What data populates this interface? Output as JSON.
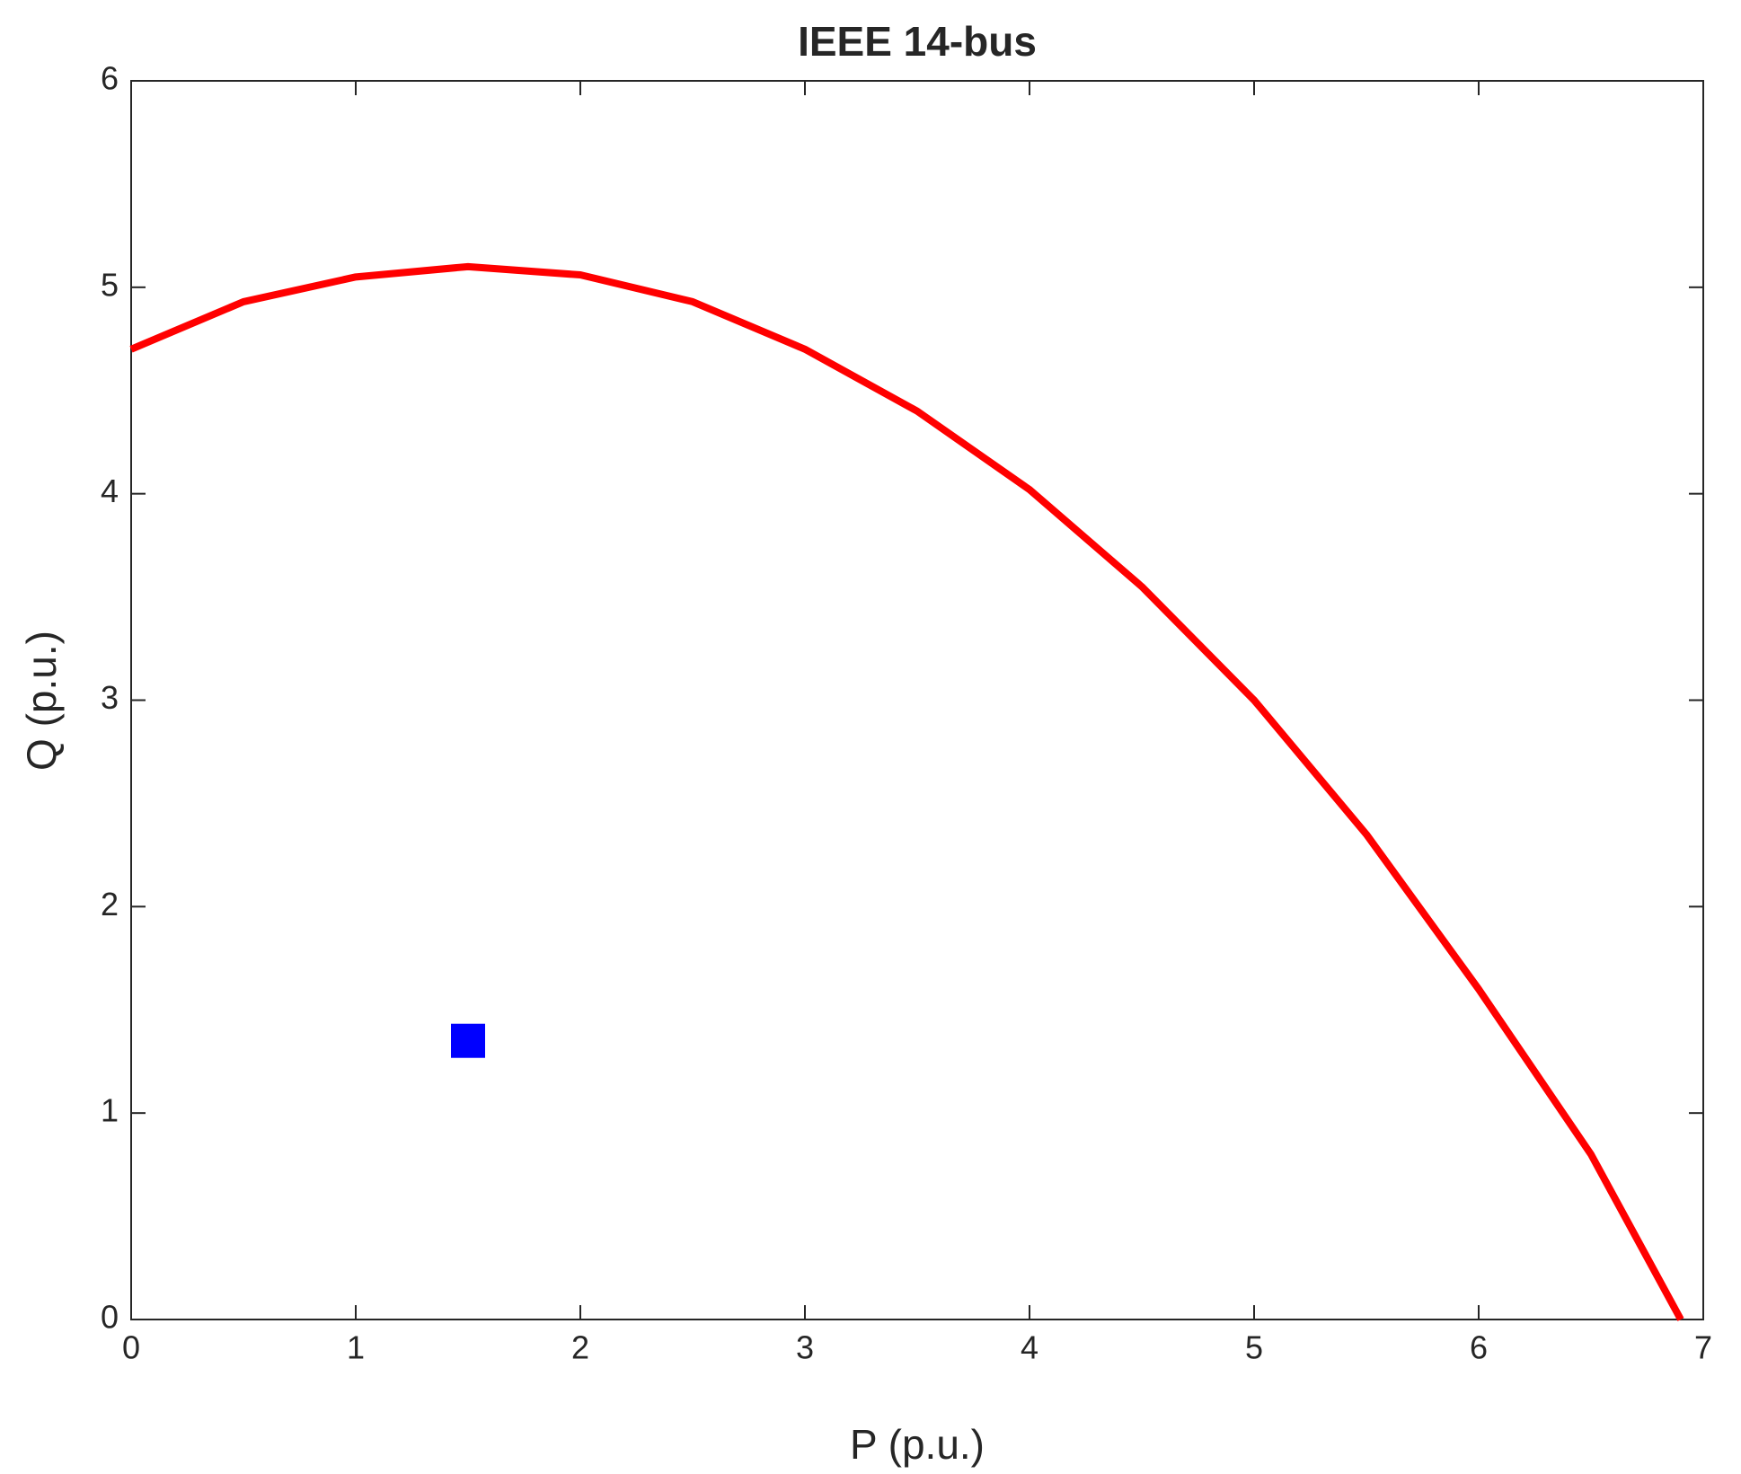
{
  "chart_data": {
    "type": "line",
    "title": "IEEE 14-bus",
    "xlabel": "P (p.u.)",
    "ylabel": "Q (p.u.)",
    "xlim": [
      0,
      7
    ],
    "ylim": [
      0,
      6
    ],
    "xticks": [
      0,
      1,
      2,
      3,
      4,
      5,
      6,
      7
    ],
    "yticks": [
      0,
      1,
      2,
      3,
      4,
      5,
      6
    ],
    "series": [
      {
        "style": "line",
        "color": "#ff0000",
        "x": [
          0,
          0.5,
          1,
          1.5,
          2,
          2.5,
          3,
          3.5,
          4,
          4.5,
          5,
          5.5,
          6,
          6.5,
          6.9
        ],
        "values": [
          4.7,
          4.93,
          5.05,
          5.1,
          5.06,
          4.93,
          4.7,
          4.4,
          4.02,
          3.55,
          3.0,
          2.35,
          1.6,
          0.8,
          0
        ]
      },
      {
        "style": "square",
        "color": "#0000ff",
        "x": [
          1.5
        ],
        "values": [
          1.35
        ]
      }
    ]
  }
}
